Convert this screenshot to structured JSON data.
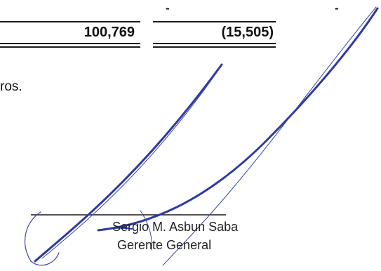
{
  "table": {
    "col1_dash": "-",
    "col2_dash": "-",
    "col1_total": "100,769",
    "col2_total": "(15,505)"
  },
  "note": {
    "text": "ros."
  },
  "signature": {
    "name": "Sergio M. Asbun Saba",
    "title": "Gerente General",
    "ink_color": "#2e3a9e"
  }
}
